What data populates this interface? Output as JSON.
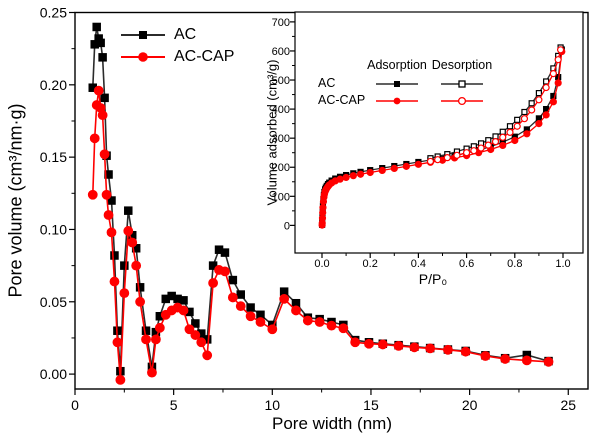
{
  "figure": {
    "background": "#ffffff",
    "frame_color": "#000000",
    "accent_colors": {
      "ac_black": "#000000",
      "accap_red": "#ff0000"
    }
  },
  "chart_data": [
    {
      "type": "line",
      "role": "main",
      "title": "",
      "xlabel": "Pore width (nm)",
      "ylabel": "Pore volume (cm³/nm·g)",
      "xlim": [
        0,
        26
      ],
      "ylim": [
        -0.0103,
        0.25
      ],
      "grid": false,
      "legend_position": "top-left-inside",
      "xticks": {
        "values": [
          0,
          5,
          10,
          15,
          20,
          25
        ],
        "labels": [
          "0",
          "5",
          "10",
          "15",
          "20",
          "25"
        ]
      },
      "yticks": {
        "values": [
          0,
          0.05,
          0.1,
          0.15,
          0.2,
          0.25
        ],
        "labels": [
          "0.00",
          "0.05",
          "0.10",
          "0.15",
          "0.20",
          "0.25"
        ]
      },
      "x": [
        0.9,
        1.0,
        1.1,
        1.2,
        1.3,
        1.4,
        1.5,
        1.6,
        1.7,
        1.85,
        2.0,
        2.15,
        2.3,
        2.5,
        2.7,
        2.9,
        3.1,
        3.3,
        3.6,
        3.9,
        4.1,
        4.3,
        4.6,
        4.9,
        5.2,
        5.5,
        5.8,
        6.1,
        6.4,
        6.7,
        7.0,
        7.3,
        7.6,
        8.0,
        8.4,
        8.9,
        9.4,
        10.0,
        10.6,
        11.2,
        11.8,
        12.4,
        13.0,
        13.6,
        14.2,
        14.9,
        15.6,
        16.4,
        17.2,
        18.0,
        18.9,
        19.8,
        20.8,
        21.8,
        22.9,
        24.0
      ],
      "series": [
        {
          "name": "AC",
          "color": "#000000",
          "line_color": "#2b2b2b",
          "marker": "square-filled",
          "values": [
            0.198,
            0.228,
            0.24,
            0.232,
            0.229,
            0.219,
            0.191,
            0.151,
            0.138,
            0.12,
            0.082,
            0.03,
            0.002,
            0.075,
            0.113,
            0.096,
            0.087,
            0.06,
            0.03,
            0.005,
            0.029,
            0.04,
            0.052,
            0.054,
            0.052,
            0.051,
            0.043,
            0.035,
            0.028,
            0.024,
            0.075,
            0.086,
            0.084,
            0.065,
            0.055,
            0.046,
            0.041,
            0.034,
            0.057,
            0.049,
            0.039,
            0.038,
            0.036,
            0.034,
            0.0235,
            0.022,
            0.021,
            0.02,
            0.019,
            0.018,
            0.017,
            0.016,
            0.013,
            0.011,
            0.0132,
            0.009
          ]
        },
        {
          "name": "AC-CAP",
          "color": "#ff0000",
          "line_color": "#ff0000",
          "marker": "circle-filled",
          "values": [
            0.124,
            0.163,
            0.186,
            0.196,
            0.184,
            0.179,
            0.152,
            0.124,
            0.11,
            0.098,
            0.064,
            0.022,
            -0.004,
            0.056,
            0.099,
            0.091,
            0.075,
            0.05,
            0.024,
            0.001,
            0.024,
            0.032,
            0.041,
            0.044,
            0.046,
            0.044,
            0.031,
            0.027,
            0.022,
            0.013,
            0.063,
            0.072,
            0.071,
            0.053,
            0.047,
            0.04,
            0.036,
            0.031,
            0.052,
            0.044,
            0.037,
            0.036,
            0.0335,
            0.0317,
            0.022,
            0.021,
            0.0205,
            0.0195,
            0.0185,
            0.0178,
            0.0168,
            0.0155,
            0.0125,
            0.0105,
            0.0095,
            0.0085
          ]
        }
      ]
    },
    {
      "type": "line",
      "role": "inset",
      "title": "",
      "xlabel": "P/P₀",
      "ylabel": "Volume adsorbed  (cm³/g)",
      "xlim": [
        -0.112,
        1.083
      ],
      "ylim": [
        -95,
        734
      ],
      "grid": false,
      "xticks": {
        "values": [
          0,
          0.2,
          0.4,
          0.6,
          0.8,
          1.0
        ],
        "labels": [
          "0.0",
          "0.2",
          "0.4",
          "0.6",
          "0.8",
          "1.0"
        ]
      },
      "yticks": {
        "values": [
          0,
          100,
          200,
          300,
          400,
          500,
          600,
          700
        ],
        "labels": [
          "0",
          "100",
          "200",
          "300",
          "400",
          "500",
          "600",
          "700"
        ]
      },
      "legend": {
        "headers": [
          "Adsorption",
          "Desorption"
        ],
        "rows": [
          "AC",
          "AC-CAP"
        ]
      },
      "series": [
        {
          "name": "AC adsorption",
          "color": "#000000",
          "line_color": "#2b2b2b",
          "marker": "square-filled",
          "x": [
            0.0005,
            0.001,
            0.002,
            0.003,
            0.004,
            0.006,
            0.008,
            0.01,
            0.013,
            0.016,
            0.02,
            0.025,
            0.03,
            0.04,
            0.055,
            0.075,
            0.1,
            0.13,
            0.16,
            0.2,
            0.25,
            0.3,
            0.35,
            0.4,
            0.45,
            0.5,
            0.55,
            0.6,
            0.65,
            0.7,
            0.75,
            0.8,
            0.85,
            0.9,
            0.93,
            0.96,
            0.98,
            0.995
          ],
          "y": [
            2,
            10,
            30,
            50,
            68,
            90,
            105,
            115,
            124,
            130,
            136,
            142,
            147,
            154,
            161,
            167,
            173,
            179,
            184,
            190,
            197,
            204,
            211,
            218,
            225,
            232,
            240,
            249,
            259,
            271,
            286,
            305,
            330,
            368,
            400,
            445,
            510,
            605
          ]
        },
        {
          "name": "AC desorption",
          "color": "#000000",
          "line_color": "#2b2b2b",
          "marker": "square-open",
          "x": [
            0.99,
            0.98,
            0.96,
            0.93,
            0.9,
            0.87,
            0.84,
            0.81,
            0.78,
            0.75,
            0.72,
            0.69,
            0.66,
            0.63,
            0.6,
            0.56,
            0.52,
            0.48,
            0.45
          ],
          "y": [
            612,
            583,
            540,
            495,
            455,
            420,
            390,
            363,
            341,
            322,
            306,
            293,
            282,
            272,
            264,
            254,
            245,
            237,
            231
          ]
        },
        {
          "name": "AC-CAP adsorption",
          "color": "#ff0000",
          "line_color": "#ff0000",
          "marker": "circle-filled",
          "x": [
            0.0005,
            0.001,
            0.002,
            0.003,
            0.004,
            0.006,
            0.008,
            0.01,
            0.013,
            0.016,
            0.02,
            0.025,
            0.03,
            0.04,
            0.055,
            0.075,
            0.1,
            0.13,
            0.16,
            0.2,
            0.25,
            0.3,
            0.35,
            0.4,
            0.45,
            0.5,
            0.55,
            0.6,
            0.65,
            0.7,
            0.75,
            0.8,
            0.85,
            0.9,
            0.93,
            0.96,
            0.98,
            0.995
          ],
          "y": [
            1,
            8,
            25,
            44,
            61,
            82,
            97,
            107,
            116,
            122,
            128,
            134,
            139,
            146,
            153,
            159,
            165,
            171,
            176,
            182,
            189,
            196,
            203,
            210,
            217,
            224,
            232,
            240,
            250,
            261,
            275,
            292,
            315,
            350,
            380,
            425,
            490,
            598
          ]
        },
        {
          "name": "AC-CAP desorption",
          "color": "#ff0000",
          "line_color": "#ff0000",
          "marker": "circle-open",
          "x": [
            0.99,
            0.98,
            0.96,
            0.93,
            0.9,
            0.87,
            0.84,
            0.81,
            0.78,
            0.75,
            0.72,
            0.69,
            0.66,
            0.63,
            0.6,
            0.56,
            0.52,
            0.48,
            0.45
          ],
          "y": [
            604,
            570,
            522,
            474,
            432,
            397,
            367,
            341,
            320,
            303,
            288,
            276,
            266,
            257,
            250,
            241,
            233,
            226,
            220
          ]
        }
      ]
    }
  ]
}
